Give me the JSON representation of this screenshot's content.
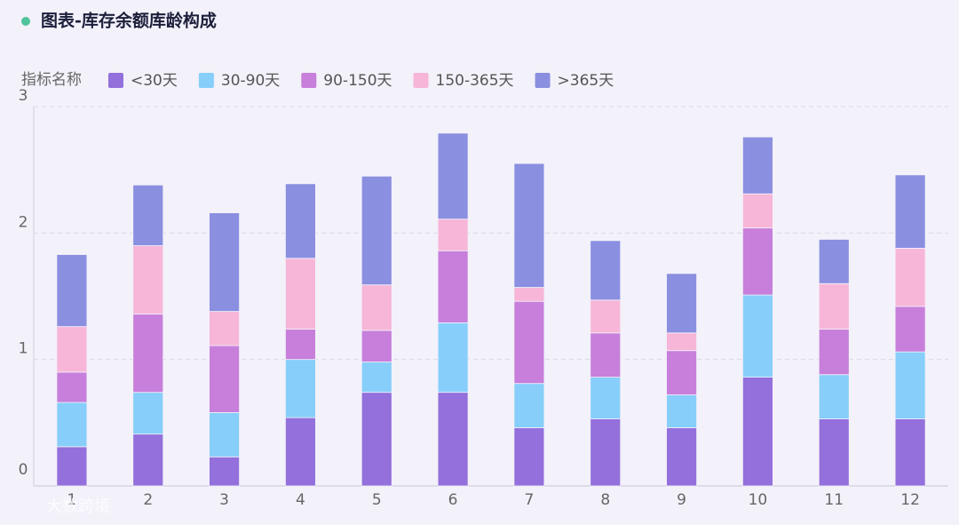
{
  "chart_data": {
    "type": "stacked_bar",
    "title": "图表-库存余额库龄构成",
    "legend_title": "指标名称",
    "categories": [
      "1",
      "2",
      "3",
      "4",
      "5",
      "6",
      "7",
      "8",
      "9",
      "10",
      "11",
      "12"
    ],
    "series": [
      {
        "name": "<30天",
        "color": "#9370db",
        "values": [
          0.31,
          0.41,
          0.23,
          0.54,
          0.74,
          0.74,
          0.46,
          0.53,
          0.46,
          0.86,
          0.53,
          0.53
        ]
      },
      {
        "name": "30-90天",
        "color": "#87cefa",
        "values": [
          0.35,
          0.33,
          0.35,
          0.46,
          0.24,
          0.55,
          0.35,
          0.33,
          0.26,
          0.65,
          0.35,
          0.53
        ]
      },
      {
        "name": "90-150天",
        "color": "#c77fdb",
        "values": [
          0.24,
          0.62,
          0.53,
          0.24,
          0.25,
          0.57,
          0.65,
          0.35,
          0.35,
          0.53,
          0.36,
          0.36
        ]
      },
      {
        "name": "150-365天",
        "color": "#f7b6d8",
        "values": [
          0.36,
          0.54,
          0.27,
          0.56,
          0.36,
          0.25,
          0.11,
          0.26,
          0.14,
          0.27,
          0.36,
          0.46
        ]
      },
      {
        "name": ">365天",
        "color": "#8a8fe0",
        "values": [
          0.57,
          0.48,
          0.78,
          0.59,
          0.86,
          0.68,
          0.98,
          0.47,
          0.47,
          0.45,
          0.35,
          0.58
        ]
      }
    ],
    "ylim": [
      0,
      3
    ],
    "yticks": [
      0,
      1,
      2,
      3
    ],
    "grid": true,
    "watermark": "大数跨境"
  }
}
